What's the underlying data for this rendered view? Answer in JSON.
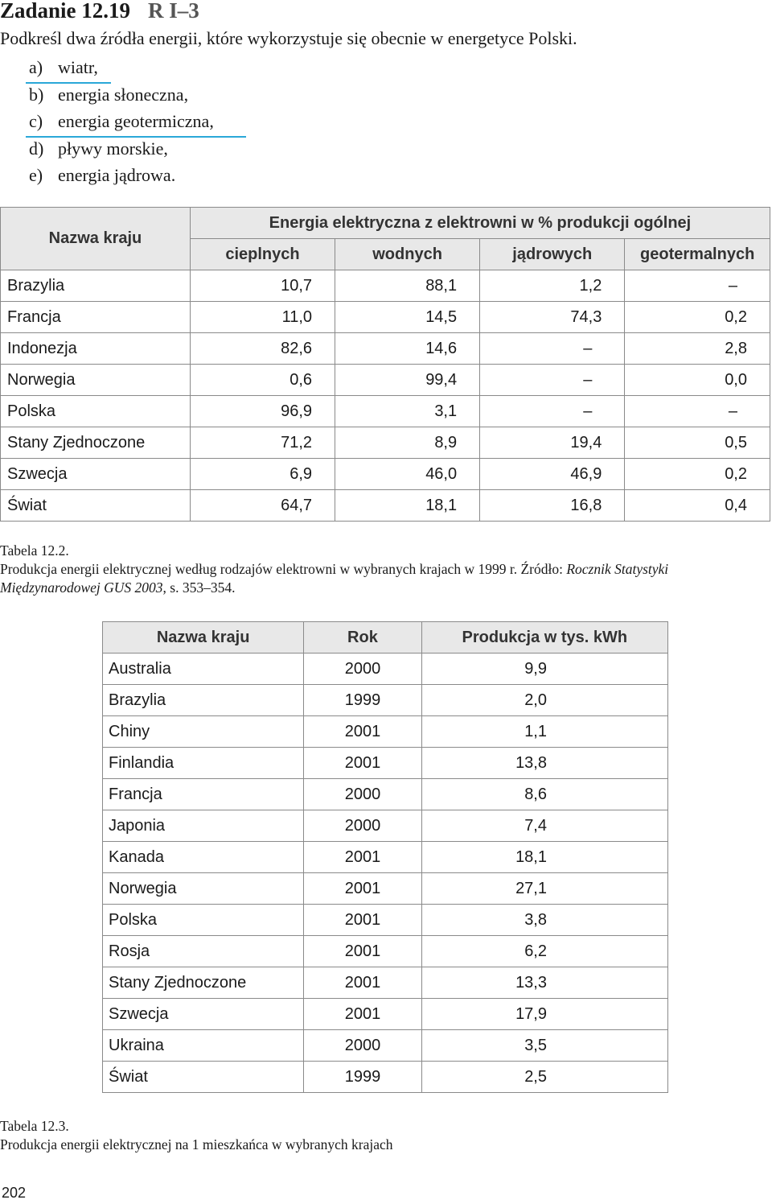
{
  "task": {
    "title": "Zadanie 12.19",
    "level": "R  I–3",
    "instruction": "Podkreśl dwa źródła energii, które wykorzystuje się obecnie w energetyce Polski.",
    "options": [
      {
        "letter": "a)",
        "text": "wiatr,",
        "underlined": true
      },
      {
        "letter": "b)",
        "text": "energia słoneczna,",
        "underlined": false
      },
      {
        "letter": "c)",
        "text": "energia geotermiczna,",
        "underlined": true
      },
      {
        "letter": "d)",
        "text": "pływy morskie,",
        "underlined": false
      },
      {
        "letter": "e)",
        "text": "energia jądrowa.",
        "underlined": false
      }
    ],
    "underline_color": "#2aa8d8"
  },
  "table1": {
    "header_country": "Nazwa kraju",
    "header_group": "Energia elektryczna z elektrowni w % produkcji ogólnej",
    "columns": [
      "cieplnych",
      "wodnych",
      "jądrowych",
      "geotermalnych"
    ],
    "rows": [
      [
        "Brazylia",
        "10,7",
        "88,1",
        "1,2",
        "–"
      ],
      [
        "Francja",
        "11,0",
        "14,5",
        "74,3",
        "0,2"
      ],
      [
        "Indonezja",
        "82,6",
        "14,6",
        "–",
        "2,8"
      ],
      [
        "Norwegia",
        "0,6",
        "99,4",
        "–",
        "0,0"
      ],
      [
        "Polska",
        "96,9",
        "3,1",
        "–",
        "–"
      ],
      [
        "Stany Zjednoczone",
        "71,2",
        "8,9",
        "19,4",
        "0,5"
      ],
      [
        "Szwecja",
        "6,9",
        "46,0",
        "46,9",
        "0,2"
      ],
      [
        "Świat",
        "64,7",
        "18,1",
        "16,8",
        "0,4"
      ]
    ],
    "caption_label": "Tabela 12.2.",
    "caption_text": "Produkcja energii elektrycznej według rodzajów elektrowni w wybranych krajach w 1999 r. Źródło: ",
    "caption_source": "Rocznik Statystyki Międzynarodowej GUS 2003",
    "caption_pages": ", s. 353–354."
  },
  "table2": {
    "columns": [
      "Nazwa kraju",
      "Rok",
      "Produkcja w tys. kWh"
    ],
    "rows": [
      [
        "Australia",
        "2000",
        "9,9"
      ],
      [
        "Brazylia",
        "1999",
        "2,0"
      ],
      [
        "Chiny",
        "2001",
        "1,1"
      ],
      [
        "Finlandia",
        "2001",
        "13,8"
      ],
      [
        "Francja",
        "2000",
        "8,6"
      ],
      [
        "Japonia",
        "2000",
        "7,4"
      ],
      [
        "Kanada",
        "2001",
        "18,1"
      ],
      [
        "Norwegia",
        "2001",
        "27,1"
      ],
      [
        "Polska",
        "2001",
        "3,8"
      ],
      [
        "Rosja",
        "2001",
        "6,2"
      ],
      [
        "Stany Zjednoczone",
        "2001",
        "13,3"
      ],
      [
        "Szwecja",
        "2001",
        "17,9"
      ],
      [
        "Ukraina",
        "2000",
        "3,5"
      ],
      [
        "Świat",
        "1999",
        "2,5"
      ]
    ],
    "caption_label": "Tabela 12.3.",
    "caption_text": "Produkcja energii elektrycznej na 1 mieszkańca w wybranych krajach"
  },
  "page_number": "202"
}
